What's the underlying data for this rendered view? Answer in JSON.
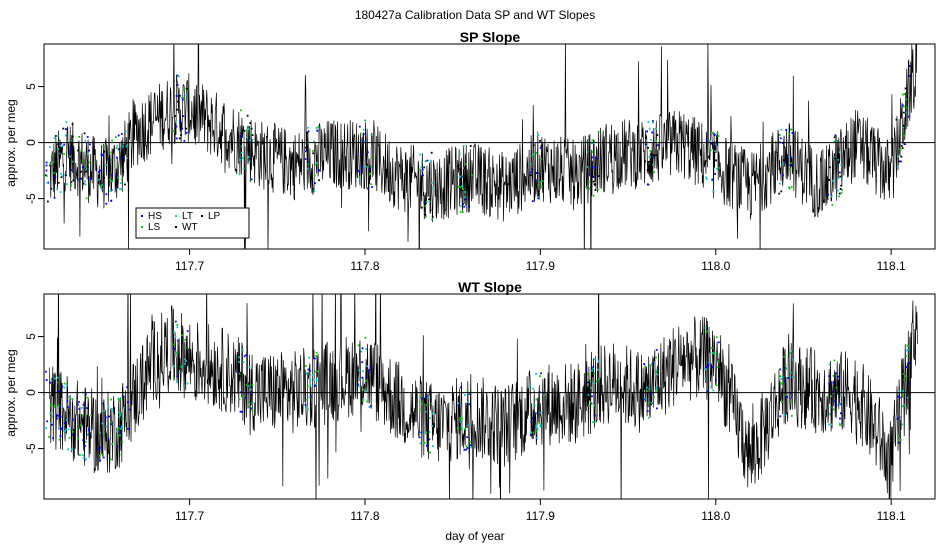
{
  "main_title": "180427a   Calibration Data SP and WT Slopes",
  "xlabel": "day of year",
  "chart_data": [
    {
      "type": "line",
      "title": "SP Slope",
      "ylabel": "approx. per meg",
      "xlim": [
        117.617,
        118.125
      ],
      "ylim": [
        -9.5,
        8.8
      ],
      "x_ticks": [
        "117.7",
        "117.8",
        "117.9",
        "118.0",
        "118.1"
      ],
      "x_tick_values": [
        117.7,
        117.8,
        117.9,
        118.0,
        118.1
      ],
      "y_ticks": [
        "-5",
        "0",
        "5"
      ],
      "y_tick_values": [
        -5,
        0,
        5
      ],
      "reference_line": 0,
      "series": [
        {
          "name": "WT",
          "color": "#000000",
          "role": "line",
          "x": [
            117.62,
            117.63,
            117.64,
            117.65,
            117.66,
            117.67,
            117.68,
            117.69,
            117.7,
            117.72,
            117.74,
            117.76,
            117.78,
            117.8,
            117.82,
            117.84,
            117.86,
            117.88,
            117.9,
            117.92,
            117.94,
            117.96,
            117.98,
            118.0,
            118.02,
            118.04,
            118.06,
            118.08,
            118.1,
            118.115
          ],
          "values": [
            -3,
            -1,
            -2,
            -3,
            -2,
            1,
            2,
            3,
            3,
            1,
            -1,
            -2,
            -1,
            -1,
            -3,
            -4,
            -3,
            -4,
            -2,
            -3,
            -1,
            -1,
            0,
            -2,
            -4,
            -1,
            -4,
            0,
            -3,
            8
          ]
        },
        {
          "name": "HS",
          "color": "#0000ff",
          "role": "points"
        },
        {
          "name": "LS",
          "color": "#00cc00",
          "role": "points"
        },
        {
          "name": "LT",
          "color": "#00cccc",
          "role": "points"
        },
        {
          "name": "LP",
          "color": "#000000",
          "role": "points"
        }
      ],
      "legend": {
        "placement": "bottom-left",
        "entries": [
          "HS",
          "LS",
          "LT",
          "WT",
          "LP"
        ]
      }
    },
    {
      "type": "line",
      "title": "WT Slope",
      "ylabel": "approx. per meg",
      "xlim": [
        117.617,
        118.125
      ],
      "ylim": [
        -9.5,
        8.8
      ],
      "x_ticks": [
        "117.7",
        "117.8",
        "117.9",
        "118.0",
        "118.1"
      ],
      "x_tick_values": [
        117.7,
        117.8,
        117.9,
        118.0,
        118.1
      ],
      "y_ticks": [
        "-5",
        "0",
        "5"
      ],
      "y_tick_values": [
        -5,
        0,
        5
      ],
      "reference_line": 0,
      "series": [
        {
          "name": "WT",
          "color": "#000000",
          "role": "line",
          "x": [
            117.62,
            117.63,
            117.64,
            117.65,
            117.66,
            117.67,
            117.68,
            117.69,
            117.7,
            117.72,
            117.74,
            117.76,
            117.78,
            117.8,
            117.82,
            117.84,
            117.86,
            117.88,
            117.9,
            117.92,
            117.94,
            117.96,
            117.98,
            118.0,
            118.02,
            118.04,
            118.06,
            118.08,
            118.1,
            118.115
          ],
          "values": [
            -1,
            -2,
            -3,
            -4,
            -3,
            0,
            3,
            4,
            3,
            2,
            0,
            0,
            1,
            2,
            -1,
            -3,
            -2,
            -3,
            -1,
            -1,
            1,
            0,
            3,
            3,
            -6,
            1,
            0,
            0,
            -6,
            7
          ]
        },
        {
          "name": "HS",
          "color": "#0000ff",
          "role": "points"
        },
        {
          "name": "LS",
          "color": "#00cc00",
          "role": "points"
        },
        {
          "name": "LT",
          "color": "#00cccc",
          "role": "points"
        }
      ]
    }
  ]
}
